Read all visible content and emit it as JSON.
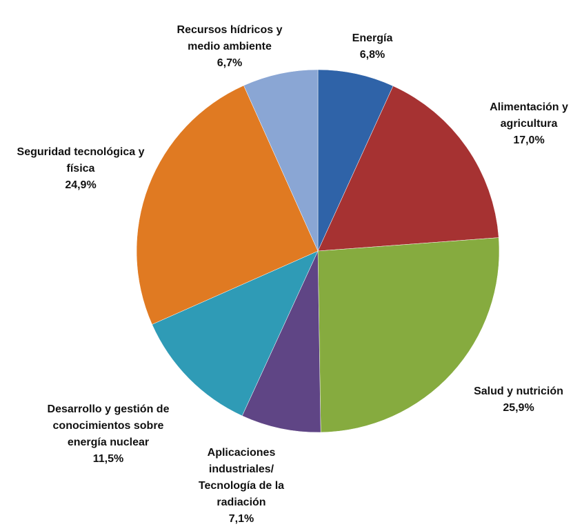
{
  "chart_data": {
    "type": "pie",
    "categories": [
      "Energía",
      "Alimentación y agricultura",
      "Salud y nutrición",
      "Aplicaciones industriales/ Tecnología de la radiación",
      "Desarrollo y gestión de conocimientos sobre energía nuclear",
      "Seguridad tecnológica y física",
      "Recursos hídricos y medio ambiente"
    ],
    "values": [
      6.8,
      17.0,
      25.9,
      7.1,
      11.5,
      24.9,
      6.7
    ],
    "value_labels": [
      "6,8%",
      "17,0%",
      "25,9%",
      "7,1%",
      "11,5%",
      "24,9%",
      "6,7%"
    ],
    "colors": [
      "#2f63a8",
      "#a63232",
      "#86ab3f",
      "#5f4585",
      "#2f9bb6",
      "#e07a22",
      "#8aa6d4"
    ]
  }
}
